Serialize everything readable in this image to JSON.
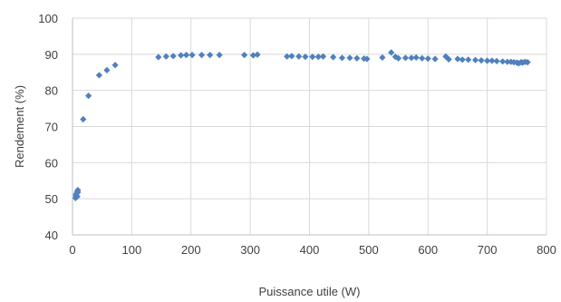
{
  "chart_data": {
    "type": "scatter",
    "xlabel": "Puissance utile (W)",
    "ylabel": "Rendement (%)",
    "xlim": [
      0,
      800
    ],
    "ylim": [
      40,
      100
    ],
    "xticks": [
      0,
      100,
      200,
      300,
      400,
      500,
      600,
      700,
      800
    ],
    "yticks": [
      40,
      50,
      60,
      70,
      80,
      90,
      100
    ],
    "grid": true,
    "marker": "diamond",
    "color": "#4f81bd",
    "series": [
      {
        "points": [
          [
            5,
            50.2
          ],
          [
            6,
            50.8
          ],
          [
            7,
            51.5
          ],
          [
            8,
            52.0
          ],
          [
            9,
            52.4
          ],
          [
            6,
            51.2
          ],
          [
            8,
            50.6
          ],
          [
            9,
            51.8
          ],
          [
            18,
            72.0
          ],
          [
            27,
            78.5
          ],
          [
            45,
            84.2
          ],
          [
            58,
            85.6
          ],
          [
            72,
            87.0
          ],
          [
            145,
            89.2
          ],
          [
            158,
            89.4
          ],
          [
            170,
            89.5
          ],
          [
            183,
            89.7
          ],
          [
            192,
            89.8
          ],
          [
            202,
            89.8
          ],
          [
            218,
            89.8
          ],
          [
            232,
            89.8
          ],
          [
            248,
            89.8
          ],
          [
            290,
            89.8
          ],
          [
            305,
            89.7
          ],
          [
            312,
            89.9
          ],
          [
            362,
            89.4
          ],
          [
            370,
            89.5
          ],
          [
            382,
            89.4
          ],
          [
            393,
            89.3
          ],
          [
            405,
            89.3
          ],
          [
            415,
            89.3
          ],
          [
            423,
            89.4
          ],
          [
            440,
            89.2
          ],
          [
            455,
            89.0
          ],
          [
            468,
            89.0
          ],
          [
            480,
            88.9
          ],
          [
            492,
            88.8
          ],
          [
            497,
            88.7
          ],
          [
            523,
            89.1
          ],
          [
            538,
            90.5
          ],
          [
            545,
            89.3
          ],
          [
            550,
            88.9
          ],
          [
            562,
            89.0
          ],
          [
            572,
            89.0
          ],
          [
            580,
            89.1
          ],
          [
            590,
            88.9
          ],
          [
            600,
            88.8
          ],
          [
            612,
            88.7
          ],
          [
            630,
            89.4
          ],
          [
            635,
            88.6
          ],
          [
            650,
            88.7
          ],
          [
            658,
            88.5
          ],
          [
            668,
            88.5
          ],
          [
            680,
            88.4
          ],
          [
            690,
            88.3
          ],
          [
            700,
            88.2
          ],
          [
            708,
            88.2
          ],
          [
            716,
            88.1
          ],
          [
            726,
            88.0
          ],
          [
            734,
            87.9
          ],
          [
            740,
            87.9
          ],
          [
            745,
            87.8
          ],
          [
            750,
            87.7
          ],
          [
            753,
            87.5
          ],
          [
            757,
            87.8
          ],
          [
            760,
            87.7
          ],
          [
            764,
            87.9
          ],
          [
            768,
            87.8
          ]
        ]
      }
    ]
  }
}
